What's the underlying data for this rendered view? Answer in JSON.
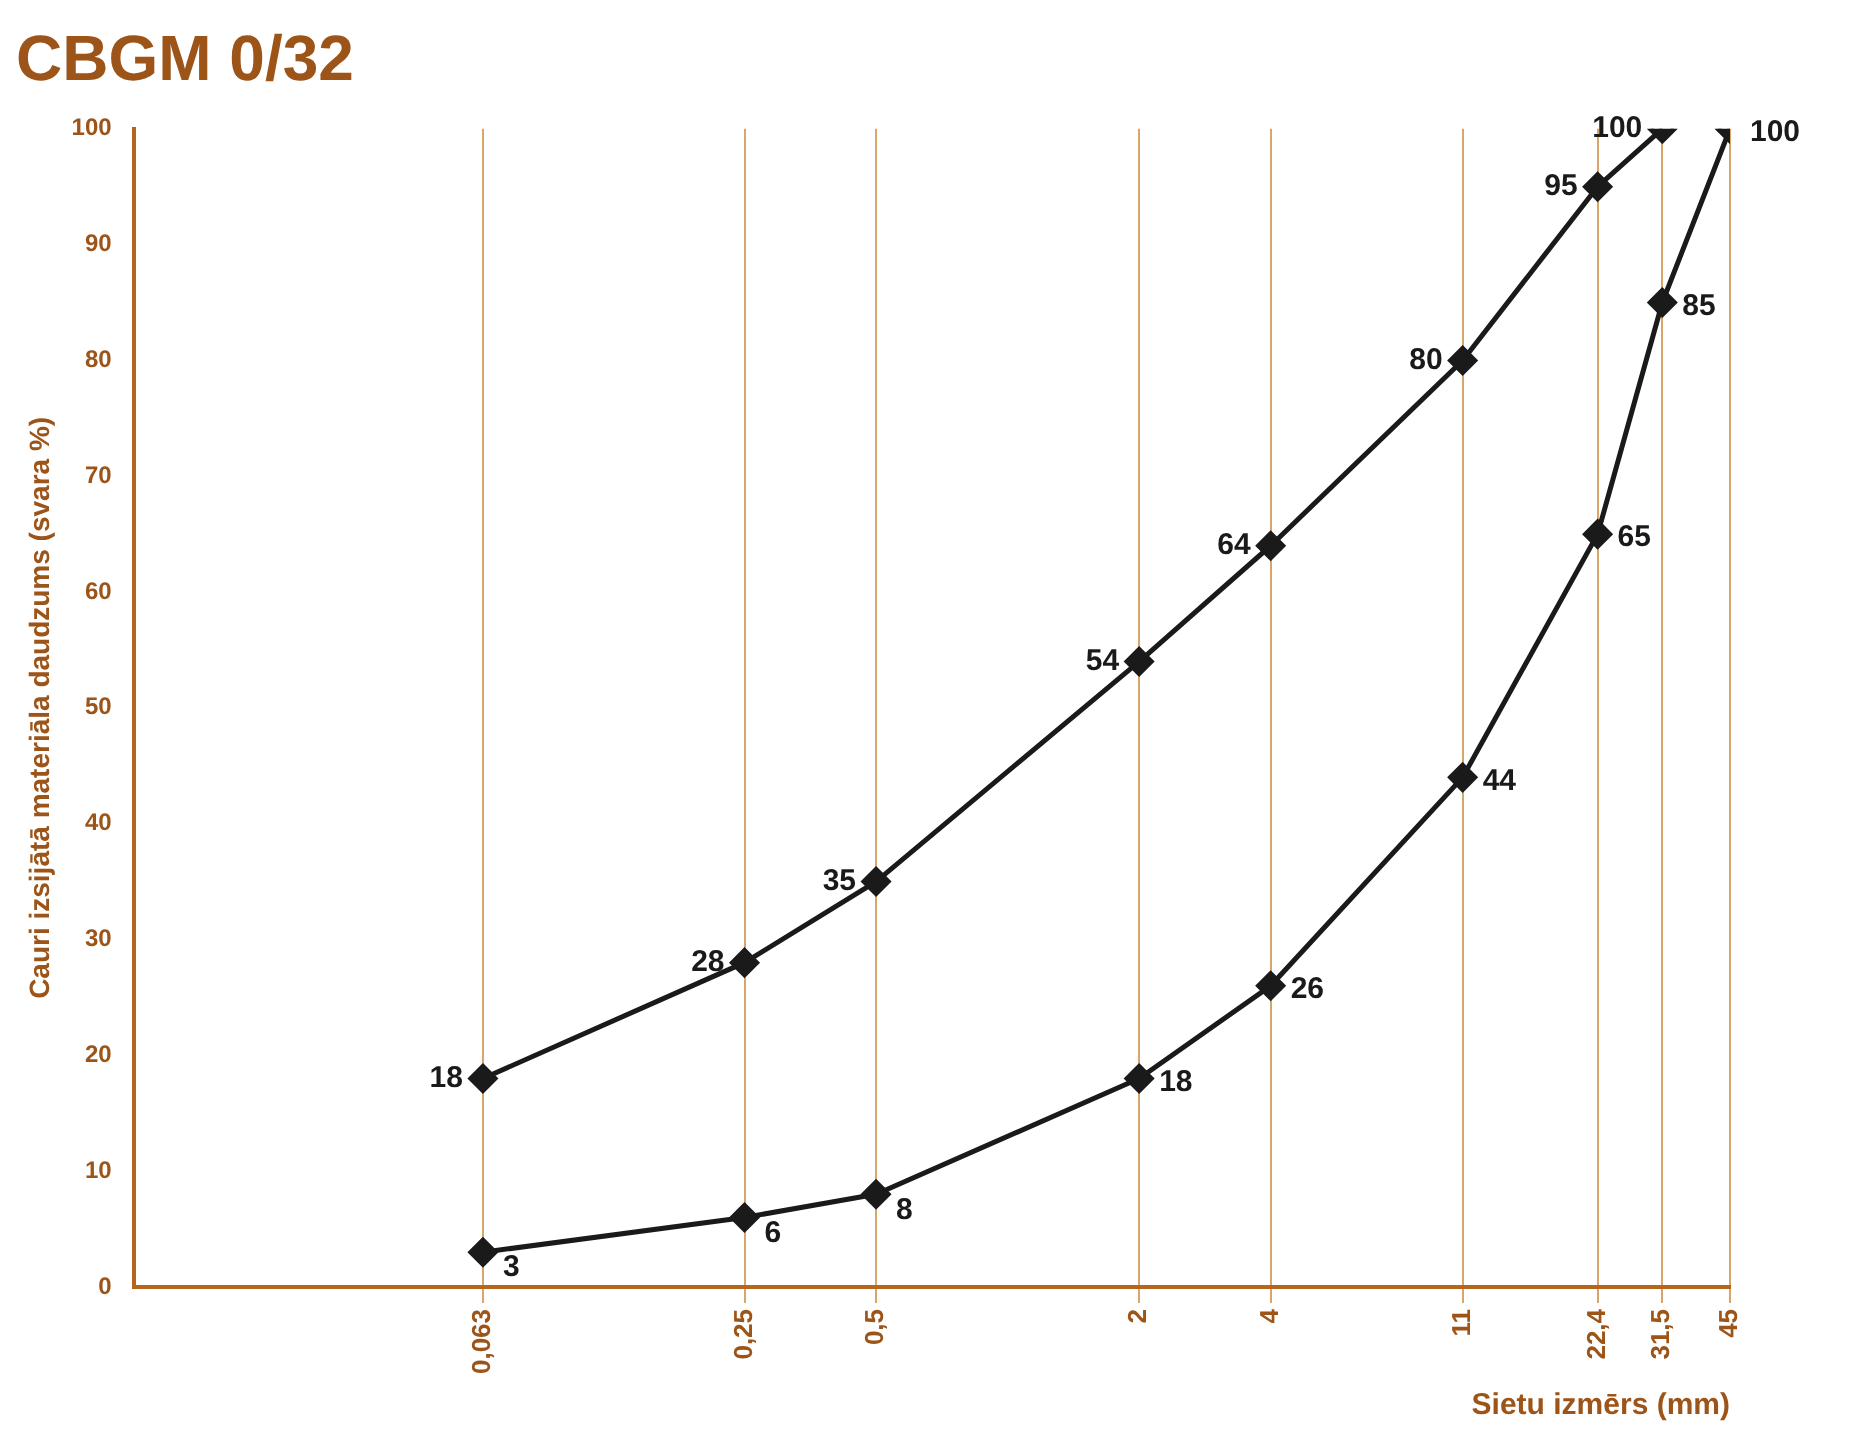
{
  "chart_data": {
    "type": "line",
    "title": "CBGM 0/32",
    "xlabel": "Sietu izmērs (mm)",
    "ylabel": "Cauri izsijātā materiāla daudzums (svara %)",
    "log": "x",
    "xlim": [
      0.01,
      45
    ],
    "xticks": [
      {
        "value": 0.063,
        "label": "0,063"
      },
      {
        "value": 0.25,
        "label": "0,25"
      },
      {
        "value": 0.5,
        "label": "0,5"
      },
      2,
      4,
      11,
      {
        "value": 22.4,
        "label": "22,4"
      },
      {
        "value": 31.5,
        "label": "31,5"
      },
      45
    ],
    "ylim": [
      0,
      100
    ],
    "yticks": [
      0,
      10,
      20,
      30,
      40,
      50,
      60,
      70,
      80,
      90,
      100
    ],
    "grid": "x",
    "marker": "diamond",
    "line_style": "solid",
    "legend": false,
    "data_labels": true,
    "series": [
      {
        "color": "#1a1a1a",
        "x": [
          0.063,
          0.25,
          0.5,
          2,
          4,
          11,
          22.4,
          31.5
        ],
        "values": [
          18,
          28,
          35,
          54,
          64,
          80,
          95,
          100
        ]
      },
      {
        "color": "#1a1a1a",
        "x": [
          0.063,
          0.25,
          0.5,
          2,
          4,
          11,
          22.4,
          31.5,
          45
        ],
        "values": [
          3,
          6,
          8,
          18,
          26,
          44,
          65,
          85,
          100
        ]
      }
    ]
  }
}
